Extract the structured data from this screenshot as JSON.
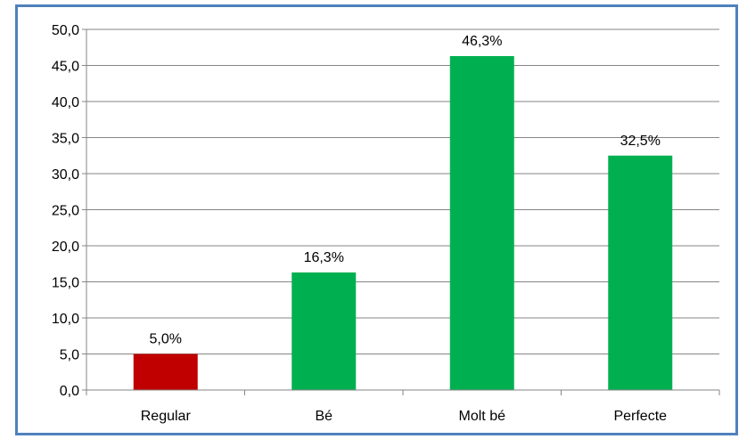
{
  "chart_data": {
    "type": "bar",
    "categories": [
      "Regular",
      "Bé",
      "Molt bé",
      "Perfecte"
    ],
    "values": [
      5.0,
      16.3,
      46.3,
      32.5
    ],
    "data_labels": [
      "5,0%",
      "16,3%",
      "46,3%",
      "32,5%"
    ],
    "bar_colors": [
      "#c00000",
      "#00b050",
      "#00b050",
      "#00b050"
    ],
    "ylim": [
      0,
      50
    ],
    "yticks": [
      "0,0",
      "5,0",
      "10,0",
      "15,0",
      "20,0",
      "25,0",
      "30,0",
      "35,0",
      "40,0",
      "45,0",
      "50,0"
    ],
    "grid": true,
    "legend": "none",
    "title": "",
    "xlabel": "",
    "ylabel": ""
  },
  "style": {
    "frame_color": "#4f81bd",
    "gridline_color": "#868686",
    "axis_color": "#868686"
  }
}
